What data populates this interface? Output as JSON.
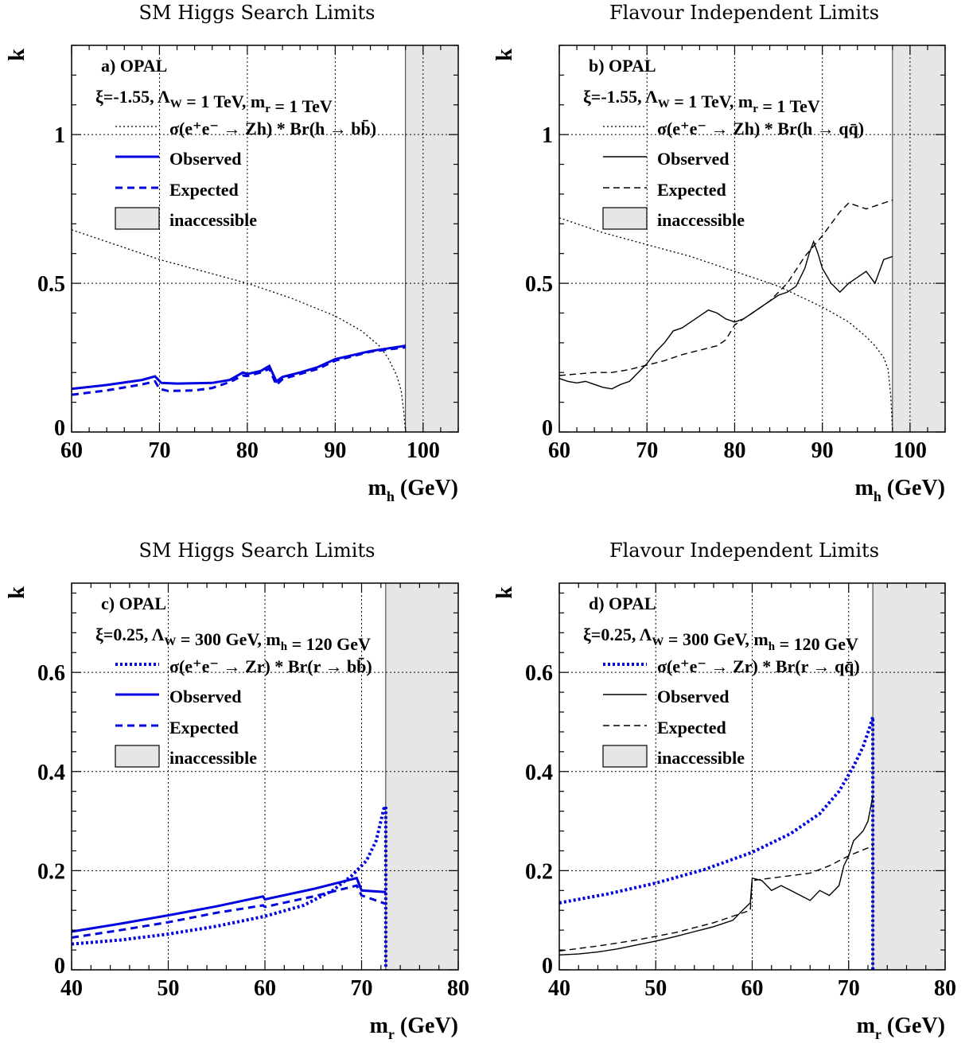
{
  "colors": {
    "blue": "#0000e0",
    "black": "#000000",
    "inaccessible_fill": "#e6e6e6",
    "grid": "#000000"
  },
  "chart_data": [
    {
      "type": "line",
      "title": "SM Higgs Search Limits",
      "panel_label": "a)  OPAL",
      "params": "ξ=-1.55,  Λ_W = 1 TeV,  m_r = 1 TeV",
      "xlabel": "m_h (GeV)",
      "ylabel": "k",
      "xlim": [
        60,
        104
      ],
      "ylim": [
        0,
        1.3
      ],
      "xticks": [
        60,
        70,
        80,
        90,
        100
      ],
      "yticks": [
        0,
        0.5,
        1
      ],
      "grid": true,
      "legend_position": "top-left",
      "inaccessible_region": [
        98,
        104
      ],
      "legend": [
        {
          "label": "σ(e⁺e⁻ → Zh) * Br(h → bb̄)",
          "style": "dotted",
          "color": "#000000"
        },
        {
          "label": "Observed",
          "style": "solid",
          "color": "#0000e0"
        },
        {
          "label": "Expected",
          "style": "dashed",
          "color": "#0000e0"
        },
        {
          "label": "inaccessible",
          "style": "box"
        }
      ],
      "series": [
        {
          "name": "σ(e⁺e⁻ → Zh) * Br(h → bb̄)",
          "style": "dotted",
          "color": "#000000",
          "width": 1.3,
          "x": [
            60,
            65,
            70,
            75,
            80,
            85,
            90,
            93,
            95,
            96,
            97,
            97.5,
            97.8,
            98
          ],
          "y": [
            0.68,
            0.63,
            0.58,
            0.54,
            0.5,
            0.45,
            0.39,
            0.34,
            0.29,
            0.25,
            0.19,
            0.14,
            0.07,
            0.0
          ]
        },
        {
          "name": "Observed",
          "style": "solid",
          "color": "#0000e0",
          "width": 3,
          "x": [
            60,
            64,
            68,
            69.5,
            70.2,
            72,
            76,
            78,
            79.5,
            80,
            81.5,
            82.5,
            83.3,
            84,
            86,
            88,
            90,
            94,
            98
          ],
          "y": [
            0.145,
            0.158,
            0.175,
            0.187,
            0.165,
            0.163,
            0.165,
            0.175,
            0.2,
            0.195,
            0.205,
            0.222,
            0.17,
            0.185,
            0.2,
            0.218,
            0.245,
            0.272,
            0.29
          ]
        },
        {
          "name": "Expected",
          "style": "dashed",
          "color": "#0000e0",
          "width": 3,
          "x": [
            60,
            64,
            68,
            69.5,
            70,
            71,
            74,
            76,
            78,
            79.5,
            80,
            81.5,
            82.5,
            83.3,
            84,
            86,
            88,
            90,
            94,
            98
          ],
          "y": [
            0.125,
            0.14,
            0.16,
            0.17,
            0.145,
            0.138,
            0.14,
            0.148,
            0.168,
            0.19,
            0.188,
            0.2,
            0.212,
            0.158,
            0.178,
            0.195,
            0.212,
            0.24,
            0.27,
            0.285
          ]
        }
      ]
    },
    {
      "type": "line",
      "title": "Flavour Independent Limits",
      "panel_label": "b)  OPAL",
      "params": "ξ=-1.55,  Λ_W = 1 TeV,  m_r = 1 TeV",
      "xlabel": "m_h (GeV)",
      "ylabel": "k",
      "xlim": [
        60,
        104
      ],
      "ylim": [
        0,
        1.3
      ],
      "xticks": [
        60,
        70,
        80,
        90,
        100
      ],
      "yticks": [
        0,
        0.5,
        1
      ],
      "grid": true,
      "legend_position": "top-left",
      "inaccessible_region": [
        98,
        104
      ],
      "legend": [
        {
          "label": "σ(e⁺e⁻ → Zh) * Br(h → qq̄)",
          "style": "dotted",
          "color": "#000000"
        },
        {
          "label": "Observed",
          "style": "solid",
          "color": "#000000"
        },
        {
          "label": "Expected",
          "style": "dashed",
          "color": "#000000"
        },
        {
          "label": "inaccessible",
          "style": "box"
        }
      ],
      "series": [
        {
          "name": "σ(e⁺e⁻ → Zh) * Br(h → qq̄)",
          "style": "dotted",
          "color": "#000000",
          "width": 1.3,
          "x": [
            60,
            65,
            70,
            75,
            80,
            85,
            90,
            93,
            95,
            96,
            97,
            97.5,
            97.8,
            98
          ],
          "y": [
            0.72,
            0.67,
            0.63,
            0.59,
            0.54,
            0.49,
            0.42,
            0.37,
            0.32,
            0.29,
            0.25,
            0.21,
            0.12,
            0.0
          ]
        },
        {
          "name": "Observed",
          "style": "solid",
          "color": "#000000",
          "width": 1.4,
          "x": [
            60,
            61,
            62,
            63,
            64,
            65,
            66,
            67,
            68,
            69,
            70,
            71,
            72,
            73,
            74,
            75,
            76,
            77,
            78,
            79,
            80,
            81,
            82,
            83,
            84,
            85,
            86,
            87,
            88,
            88.5,
            89,
            89.5,
            90,
            91,
            92,
            93,
            94,
            95,
            96,
            97,
            98
          ],
          "y": [
            0.18,
            0.17,
            0.165,
            0.17,
            0.16,
            0.15,
            0.145,
            0.16,
            0.17,
            0.2,
            0.23,
            0.27,
            0.3,
            0.34,
            0.35,
            0.37,
            0.39,
            0.41,
            0.4,
            0.38,
            0.37,
            0.38,
            0.4,
            0.42,
            0.44,
            0.46,
            0.47,
            0.49,
            0.55,
            0.6,
            0.64,
            0.6,
            0.55,
            0.5,
            0.47,
            0.5,
            0.52,
            0.54,
            0.5,
            0.58,
            0.59
          ]
        },
        {
          "name": "Expected",
          "style": "dashed",
          "color": "#000000",
          "width": 1.4,
          "x": [
            60,
            64,
            66,
            68,
            70,
            72,
            74,
            76,
            78,
            79,
            80,
            82,
            84,
            86,
            88,
            90,
            92,
            93,
            95,
            96,
            98
          ],
          "y": [
            0.19,
            0.2,
            0.2,
            0.21,
            0.225,
            0.24,
            0.26,
            0.275,
            0.29,
            0.31,
            0.36,
            0.4,
            0.44,
            0.5,
            0.59,
            0.66,
            0.74,
            0.77,
            0.75,
            0.76,
            0.78
          ]
        }
      ]
    },
    {
      "type": "line",
      "title": "SM Higgs Search Limits",
      "panel_label": "c)  OPAL",
      "params": "ξ=0.25,  Λ_W = 300 GeV,  m_h = 120 GeV",
      "xlabel": "m_r (GeV)",
      "ylabel": "k",
      "xlim": [
        40,
        80
      ],
      "ylim": [
        0,
        0.78
      ],
      "xticks": [
        40,
        50,
        60,
        70,
        80
      ],
      "yticks": [
        0,
        0.2,
        0.4,
        0.6
      ],
      "grid": true,
      "legend_position": "top-left",
      "inaccessible_region": [
        72.5,
        80
      ],
      "legend": [
        {
          "label": "σ(e⁺e⁻ → Zr) * Br(r → bb̄)",
          "style": "dotted",
          "color": "#0000e0"
        },
        {
          "label": "Observed",
          "style": "solid",
          "color": "#0000e0"
        },
        {
          "label": "Expected",
          "style": "dashed",
          "color": "#0000e0"
        },
        {
          "label": "inaccessible",
          "style": "box"
        }
      ],
      "series": [
        {
          "name": "σ(e⁺e⁻ → Zr) * Br(r → bb̄)",
          "style": "dotted",
          "color": "#0000e0",
          "width": 4,
          "x": [
            40,
            45,
            50,
            55,
            60,
            64,
            67,
            69,
            70.5,
            71.5,
            72,
            72.3,
            72.5,
            72.5
          ],
          "y": [
            0.052,
            0.06,
            0.072,
            0.088,
            0.108,
            0.13,
            0.16,
            0.19,
            0.22,
            0.26,
            0.3,
            0.325,
            0.33,
            0.0
          ]
        },
        {
          "name": "Observed",
          "style": "solid",
          "color": "#0000e0",
          "width": 3,
          "x": [
            40,
            45,
            50,
            55,
            59.8,
            60,
            65,
            69.5,
            70,
            72.5
          ],
          "y": [
            0.077,
            0.093,
            0.11,
            0.128,
            0.148,
            0.142,
            0.163,
            0.185,
            0.16,
            0.157
          ]
        },
        {
          "name": "Expected",
          "style": "dashed",
          "color": "#0000e0",
          "width": 3,
          "x": [
            40,
            45,
            50,
            55,
            59.8,
            60,
            65,
            69.5,
            70,
            72.5
          ],
          "y": [
            0.065,
            0.08,
            0.096,
            0.115,
            0.13,
            0.127,
            0.148,
            0.17,
            0.15,
            0.133
          ]
        }
      ]
    },
    {
      "type": "line",
      "title": "Flavour Independent Limits",
      "panel_label": "d)  OPAL",
      "params": "ξ=0.25,  Λ_W = 300 GeV,  m_h = 120 GeV",
      "xlabel": "m_r (GeV)",
      "ylabel": "k",
      "xlim": [
        40,
        80
      ],
      "ylim": [
        0,
        0.78
      ],
      "xticks": [
        40,
        50,
        60,
        70,
        80
      ],
      "yticks": [
        0,
        0.2,
        0.4,
        0.6
      ],
      "grid": true,
      "legend_position": "top-left",
      "inaccessible_region": [
        72.5,
        80
      ],
      "legend": [
        {
          "label": "σ(e⁺e⁻ → Zr) * Br(r → qq̄)",
          "style": "dotted",
          "color": "#0000e0"
        },
        {
          "label": "Observed",
          "style": "solid",
          "color": "#000000"
        },
        {
          "label": "Expected",
          "style": "dashed",
          "color": "#000000"
        },
        {
          "label": "inaccessible",
          "style": "box"
        }
      ],
      "series": [
        {
          "name": "σ(e⁺e⁻ → Zr) * Br(r → qq̄)",
          "style": "dotted",
          "color": "#0000e0",
          "width": 4,
          "x": [
            40,
            45,
            50,
            55,
            60,
            64,
            67,
            69,
            70.5,
            71.5,
            72.2,
            72.5,
            72.5
          ],
          "y": [
            0.135,
            0.153,
            0.175,
            0.202,
            0.237,
            0.275,
            0.315,
            0.36,
            0.41,
            0.45,
            0.49,
            0.51,
            0.0
          ]
        },
        {
          "name": "Observed",
          "style": "solid",
          "color": "#000000",
          "width": 1.4,
          "x": [
            40,
            42,
            44,
            46,
            48,
            50,
            52,
            54,
            56,
            58,
            59,
            59.8,
            60,
            61,
            62,
            63,
            64,
            65,
            66,
            67,
            68,
            69,
            69.5,
            70,
            70.5,
            71,
            71.5,
            72,
            72.5
          ],
          "y": [
            0.03,
            0.032,
            0.036,
            0.042,
            0.05,
            0.058,
            0.067,
            0.077,
            0.087,
            0.1,
            0.12,
            0.135,
            0.185,
            0.18,
            0.16,
            0.17,
            0.16,
            0.15,
            0.14,
            0.16,
            0.15,
            0.17,
            0.21,
            0.23,
            0.26,
            0.27,
            0.28,
            0.3,
            0.35
          ]
        },
        {
          "name": "Expected",
          "style": "dashed",
          "color": "#000000",
          "width": 1.4,
          "x": [
            40,
            44,
            48,
            52,
            56,
            59.8,
            60,
            62,
            64,
            66,
            68,
            70,
            72.5
          ],
          "y": [
            0.038,
            0.048,
            0.06,
            0.075,
            0.095,
            0.12,
            0.18,
            0.185,
            0.19,
            0.195,
            0.21,
            0.23,
            0.25
          ]
        }
      ]
    }
  ]
}
